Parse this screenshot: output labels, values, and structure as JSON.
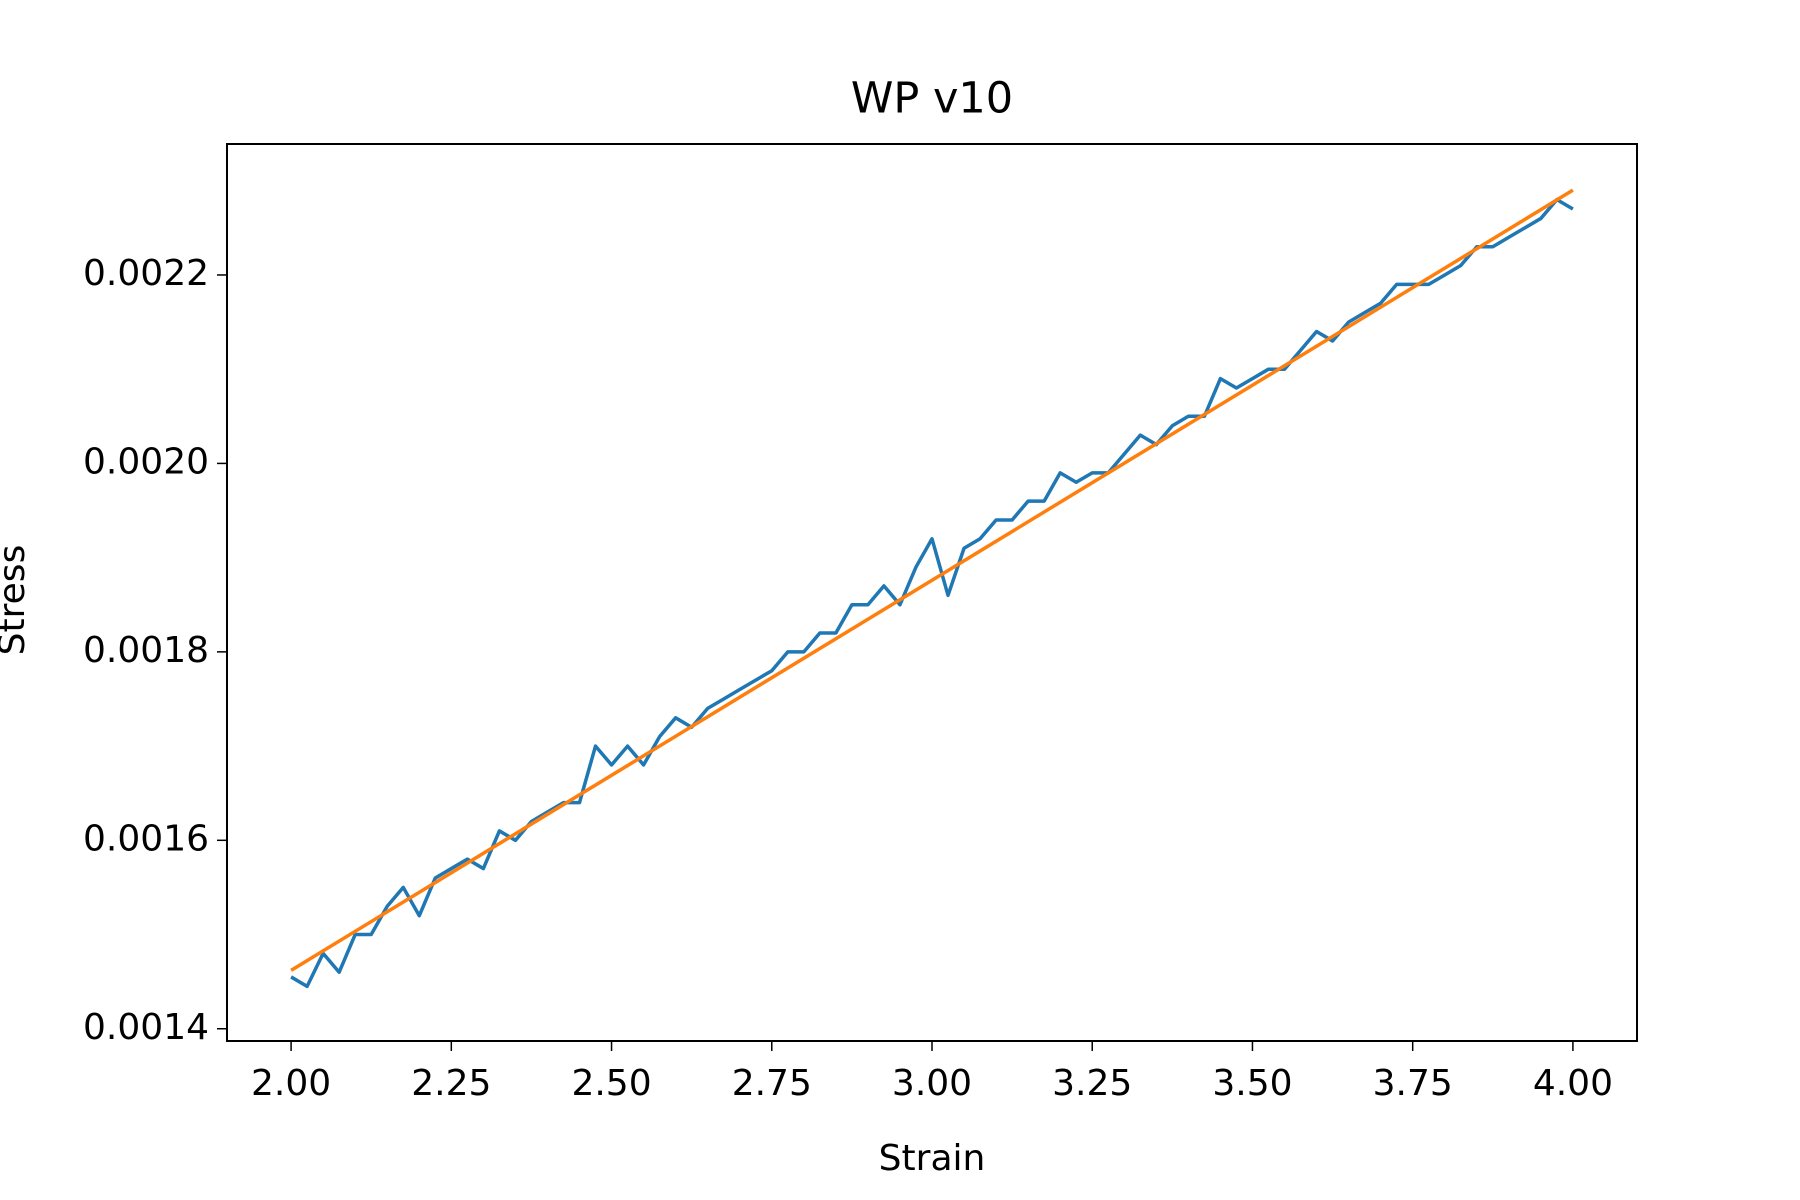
{
  "chart_data": {
    "type": "line",
    "title": "WP v10",
    "x_label": "Strain",
    "y_label": "Stress",
    "series": [
      {
        "color": "#1f77b4",
        "x": [
          2.0,
          2.025,
          2.05,
          2.075,
          2.1,
          2.125,
          2.15,
          2.175,
          2.2,
          2.225,
          2.25,
          2.275,
          2.3,
          2.325,
          2.35,
          2.375,
          2.4,
          2.425,
          2.45,
          2.475,
          2.5,
          2.525,
          2.55,
          2.575,
          2.6,
          2.625,
          2.65,
          2.675,
          2.7,
          2.725,
          2.75,
          2.775,
          2.8,
          2.825,
          2.85,
          2.875,
          2.9,
          2.925,
          2.95,
          2.975,
          3.0,
          3.025,
          3.05,
          3.075,
          3.1,
          3.125,
          3.15,
          3.175,
          3.2,
          3.225,
          3.25,
          3.275,
          3.3,
          3.325,
          3.35,
          3.375,
          3.4,
          3.425,
          3.45,
          3.475,
          3.5,
          3.525,
          3.55,
          3.575,
          3.6,
          3.625,
          3.65,
          3.675,
          3.7,
          3.725,
          3.75,
          3.775,
          3.8,
          3.825,
          3.85,
          3.875,
          3.9,
          3.925,
          3.95,
          3.975,
          4.0
        ],
        "values": [
          0.001455,
          0.001445,
          0.00148,
          0.00146,
          0.0015,
          0.0015,
          0.00153,
          0.00155,
          0.00152,
          0.00156,
          0.00157,
          0.00158,
          0.00157,
          0.00161,
          0.0016,
          0.00162,
          0.00163,
          0.00164,
          0.00164,
          0.0017,
          0.00168,
          0.0017,
          0.00168,
          0.00171,
          0.00173,
          0.00172,
          0.00174,
          0.00175,
          0.00176,
          0.00177,
          0.00178,
          0.0018,
          0.0018,
          0.00182,
          0.00182,
          0.00185,
          0.00185,
          0.00187,
          0.00185,
          0.00189,
          0.00192,
          0.00186,
          0.00191,
          0.00192,
          0.00194,
          0.00194,
          0.00196,
          0.00196,
          0.00199,
          0.00198,
          0.00199,
          0.00199,
          0.00201,
          0.00203,
          0.00202,
          0.00204,
          0.00205,
          0.00205,
          0.00209,
          0.00208,
          0.00209,
          0.0021,
          0.0021,
          0.00212,
          0.00214,
          0.00213,
          0.00215,
          0.00216,
          0.00217,
          0.00219,
          0.00219,
          0.00219,
          0.0022,
          0.00221,
          0.00223,
          0.00223,
          0.00224,
          0.00225,
          0.00226,
          0.00228,
          0.00227
        ]
      },
      {
        "color": "#ff7f0e",
        "x": [
          2.0,
          4.0
        ],
        "values": [
          0.001462,
          0.00229
        ]
      }
    ],
    "xlim": [
      1.9,
      4.1
    ],
    "ylim": [
      0.001387,
      0.002339
    ],
    "xticks": [
      {
        "value": 2,
        "label": "2.00"
      },
      {
        "value": 2.25,
        "label": "2.25"
      },
      {
        "value": 2.5,
        "label": "2.50"
      },
      {
        "value": 2.75,
        "label": "2.75"
      },
      {
        "value": 3,
        "label": "3.00"
      },
      {
        "value": 3.25,
        "label": "3.25"
      },
      {
        "value": 3.5,
        "label": "3.50"
      },
      {
        "value": 3.75,
        "label": "3.75"
      },
      {
        "value": 4,
        "label": "4.00"
      }
    ],
    "yticks": [
      0.0014,
      0.0016,
      0.0018,
      {
        "value": 0.002,
        "label": "0.0020"
      },
      0.0022
    ]
  }
}
